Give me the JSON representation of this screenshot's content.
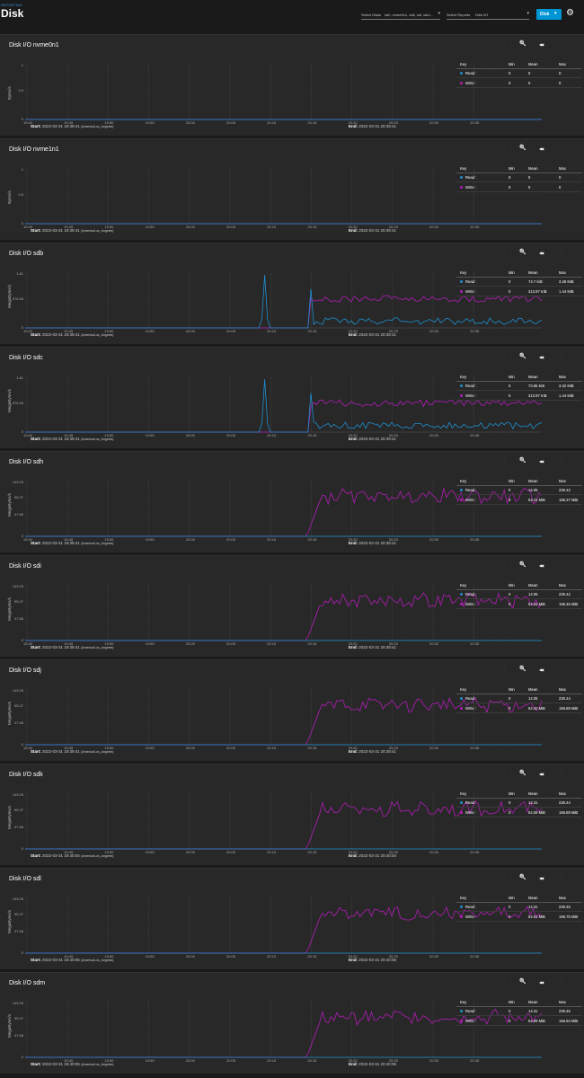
{
  "header": {
    "breadcrumb": "REPORTING",
    "title": "Disk",
    "select_disks_label": "Select Disks",
    "select_disks_value": "sdh, nvme0n1, sdk, sdl, sdm...",
    "select_reports_label": "Select Reports",
    "select_reports_value": "Disk I/O",
    "disk_button": "Disk"
  },
  "colors": {
    "read": "#1e8fd0",
    "write": "#b31cb8",
    "accent": "#0095d5"
  },
  "legend_headers": {
    "key": "Key",
    "min": "Min",
    "mean": "Mean",
    "max": "Max"
  },
  "labels": {
    "start": "Start:",
    "end": "End:",
    "read": "Read :",
    "write": "Write :"
  },
  "x_ticks": [
    "19:40",
    "19:45",
    "19:50",
    "19:55",
    "20:00",
    "20:05",
    "20:10",
    "20:15",
    "20:20",
    "20:25",
    "20:30",
    "20:35"
  ],
  "charts": [
    {
      "title": "Disk I/O nvme0n1",
      "ylabel": "Bytes/s",
      "yticks": [
        "1",
        "0.5",
        "0"
      ],
      "show_first_tick": true,
      "shape": "zero",
      "read": {
        "min": "0",
        "mean": "0",
        "max": "0"
      },
      "write": {
        "min": "0",
        "mean": "0",
        "max": "0"
      },
      "start": "2022-03-31 19:39:41",
      "tz": "(America/Los_Angeles)",
      "end": "2022-03-31 20:39:41"
    },
    {
      "title": "Disk I/O nvme1n1",
      "ylabel": "Bytes/s",
      "yticks": [
        "1",
        "0.5",
        "0"
      ],
      "show_first_tick": true,
      "shape": "zero",
      "read": {
        "min": "0",
        "mean": "0",
        "max": "0"
      },
      "write": {
        "min": "0",
        "mean": "0",
        "max": "0"
      },
      "start": "2022-03-31 19:39:41",
      "tz": "(America/Los_Angeles)",
      "end": "2022-03-31 20:39:41"
    },
    {
      "title": "Disk I/O sdb",
      "ylabel": "MegaBytes/s",
      "yticks": [
        "1.81",
        "976.56",
        "0"
      ],
      "show_first_tick": true,
      "shape": "spiky",
      "read": {
        "min": "0",
        "mean": "74.7 KiB",
        "max": "3.36 MiB"
      },
      "write": {
        "min": "0",
        "mean": "313.97 KiB",
        "max": "1.44 MiB"
      },
      "start": "2022-03-31 19:39:41",
      "tz": "(America/Los_Angeles)",
      "end": "2022-03-31 20:39:41"
    },
    {
      "title": "Disk I/O sdc",
      "ylabel": "MegaBytes/s",
      "yticks": [
        "1.81",
        "976.56",
        "0"
      ],
      "show_first_tick": true,
      "shape": "spiky",
      "read": {
        "min": "0",
        "mean": "73.65 KiB",
        "max": "3.32 MiB"
      },
      "write": {
        "min": "0",
        "mean": "313.97 KiB",
        "max": "1.44 MiB"
      },
      "start": "2022-03-31 19:39:41",
      "tz": "(America/Los_Angeles)",
      "end": "2022-03-31 20:39:41"
    },
    {
      "title": "Disk I/O sdh",
      "ylabel": "MegaBytes/s",
      "yticks": [
        "143.05",
        "95.37",
        "47.68",
        "0"
      ],
      "show_first_tick": true,
      "shape": "ramp",
      "read": {
        "min": "0",
        "mean": "14.05",
        "max": "230.42"
      },
      "write": {
        "min": "0",
        "mean": "54.31 MiB",
        "max": "156.37 MiB"
      },
      "start": "2022-03-31 19:39:41",
      "tz": "(America/Los_Angeles)",
      "end": "2022-03-31 20:39:41"
    },
    {
      "title": "Disk I/O sdi",
      "ylabel": "MegaBytes/s",
      "yticks": [
        "143.05",
        "95.37",
        "47.68",
        "0"
      ],
      "show_first_tick": true,
      "shape": "ramp",
      "read": {
        "min": "0",
        "mean": "14.05",
        "max": "230.42"
      },
      "write": {
        "min": "0",
        "mean": "54.34 MiB",
        "max": "156.45 MiB"
      },
      "start": "2022-03-31 19:39:41",
      "tz": "(America/Los_Angeles)",
      "end": "2022-03-31 20:39:41"
    },
    {
      "title": "Disk I/O sdj",
      "ylabel": "MegaBytes/s",
      "yticks": [
        "143.05",
        "95.37",
        "47.68",
        "0"
      ],
      "show_first_tick": true,
      "shape": "ramp",
      "read": {
        "min": "0",
        "mean": "14.05",
        "max": "230.44"
      },
      "write": {
        "min": "0",
        "mean": "54.42 MiB",
        "max": "156.89 MiB"
      },
      "start": "2022-03-31 19:39:41",
      "tz": "(America/Los_Angeles)",
      "end": "2022-03-31 20:39:41"
    },
    {
      "title": "Disk I/O sdk",
      "ylabel": "MegaBytes/s",
      "yticks": [
        "143.05",
        "95.37",
        "47.68",
        "0"
      ],
      "show_first_tick": false,
      "shape": "ramp",
      "read": {
        "min": "0",
        "mean": "14.31",
        "max": "230.44"
      },
      "write": {
        "min": "0",
        "mean": "54.09 MiB",
        "max": "156.89 MiB"
      },
      "start": "2022-03-31 19:40:04",
      "tz": "(America/Los_Angeles)",
      "end": "2022-03-31 20:40:04"
    },
    {
      "title": "Disk I/O sdl",
      "ylabel": "MegaBytes/s",
      "yticks": [
        "143.05",
        "95.37",
        "47.68",
        "0"
      ],
      "show_first_tick": false,
      "shape": "ramp",
      "read": {
        "min": "0",
        "mean": "14.31",
        "max": "230.45"
      },
      "write": {
        "min": "0",
        "mean": "54.01 MiB",
        "max": "156.75 MiB"
      },
      "start": "2022-03-31 19:40:05",
      "tz": "(America/Los_Angeles)",
      "end": "2022-03-31 20:40:05"
    },
    {
      "title": "Disk I/O sdm",
      "ylabel": "MegaBytes/s",
      "yticks": [
        "143.05",
        "95.37",
        "47.68",
        "0"
      ],
      "show_first_tick": false,
      "shape": "ramp",
      "read": {
        "min": "0",
        "mean": "14.31",
        "max": "230.45"
      },
      "write": {
        "min": "0",
        "mean": "54.09 MiB",
        "max": "156.84 MiB"
      },
      "start": "2022-03-31 19:40:05",
      "tz": "(America/Los_Angeles)",
      "end": "2022-03-31 20:40:05"
    }
  ]
}
